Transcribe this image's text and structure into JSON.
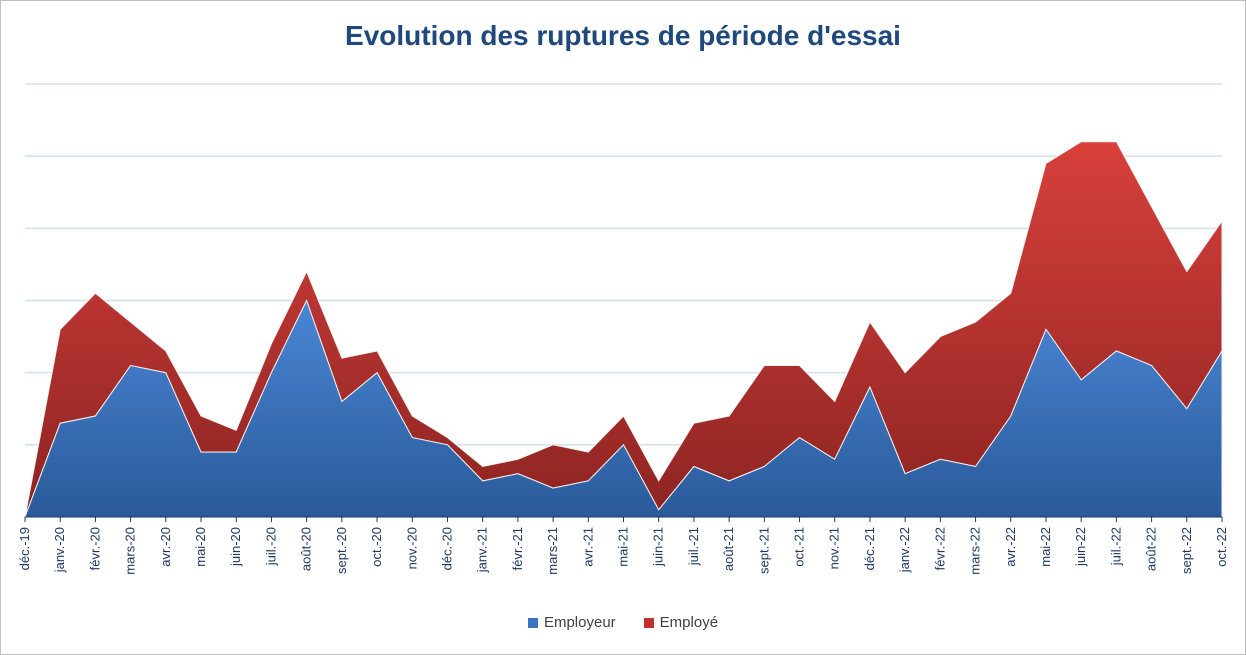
{
  "chart_data": {
    "type": "area",
    "stacked": true,
    "title": "Evolution des ruptures de période d'essai",
    "categories": [
      "déc.-19",
      "janv.-20",
      "févr.-20",
      "mars-20",
      "avr.-20",
      "mai-20",
      "juin-20",
      "juil.-20",
      "août-20",
      "sept.-20",
      "oct.-20",
      "nov.-20",
      "déc.-20",
      "janv.-21",
      "févr.-21",
      "mars-21",
      "avr.-21",
      "mai-21",
      "juin-21",
      "juil.-21",
      "août-21",
      "sept.-21",
      "oct.-21",
      "nov.-21",
      "déc.-21",
      "janv.-22",
      "févr.-22",
      "mars-22",
      "avr.-22",
      "mai-22",
      "juin-22",
      "juil.-22",
      "août-22",
      "sept.-22",
      "oct.-22"
    ],
    "series": [
      {
        "name": "Employeur",
        "color": "#3a73c0",
        "values": [
          0,
          13,
          14,
          21,
          20,
          9,
          9,
          20,
          30,
          16,
          20,
          11,
          10,
          5,
          6,
          4,
          5,
          10,
          1,
          7,
          5,
          7,
          11,
          8,
          18,
          6,
          8,
          7,
          14,
          26,
          19,
          23,
          21,
          15,
          23
        ]
      },
      {
        "name": "Employé",
        "color": "#c0302c",
        "values": [
          0,
          13,
          17,
          6,
          3,
          5,
          3,
          4,
          4,
          6,
          3,
          3,
          1,
          2,
          2,
          6,
          4,
          4,
          4,
          6,
          9,
          14,
          10,
          8,
          9,
          14,
          17,
          20,
          17,
          23,
          33,
          29,
          22,
          19,
          18
        ]
      }
    ],
    "ylim": [
      0,
      60
    ],
    "grid": true,
    "gridlines": [
      10,
      20,
      30,
      40,
      50,
      60
    ],
    "legend_position": "bottom"
  }
}
